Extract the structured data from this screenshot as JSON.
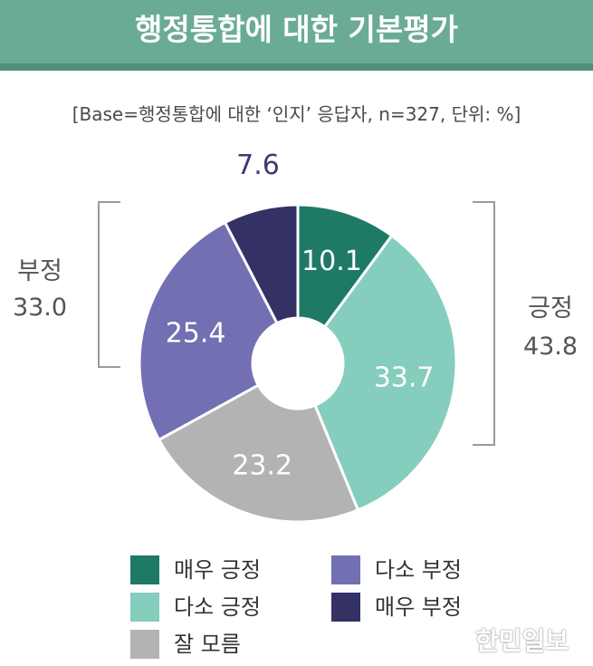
{
  "title": "행정통합에 대한 기본평가",
  "subtitle": "[Base=행정통합에 대한 ‘인지’ 응답자, n=327, 단위: %]",
  "chart_data": {
    "type": "pie",
    "variant": "donut",
    "categories": [
      "매우 긍정",
      "다소 긍정",
      "잘 모름",
      "다소 부정",
      "매우 부정"
    ],
    "values": [
      10.1,
      33.7,
      23.2,
      25.4,
      7.6
    ],
    "labels": [
      "10.1",
      "33.7",
      "23.2",
      "25.4",
      "7.6"
    ],
    "colors": [
      "#1f7a65",
      "#85cdbd",
      "#b3b3b3",
      "#7270b2",
      "#343164"
    ],
    "label_colors": [
      "#ffffff",
      "#ffffff",
      "#ffffff",
      "#ffffff",
      "#3d3a72"
    ],
    "groups": {
      "positive": {
        "name": "긍정",
        "value": "43.8"
      },
      "negative": {
        "name": "부정",
        "value": "33.0"
      }
    },
    "legend": {
      "placement": "bottom",
      "columns": 2
    }
  },
  "watermark": "한민일보"
}
